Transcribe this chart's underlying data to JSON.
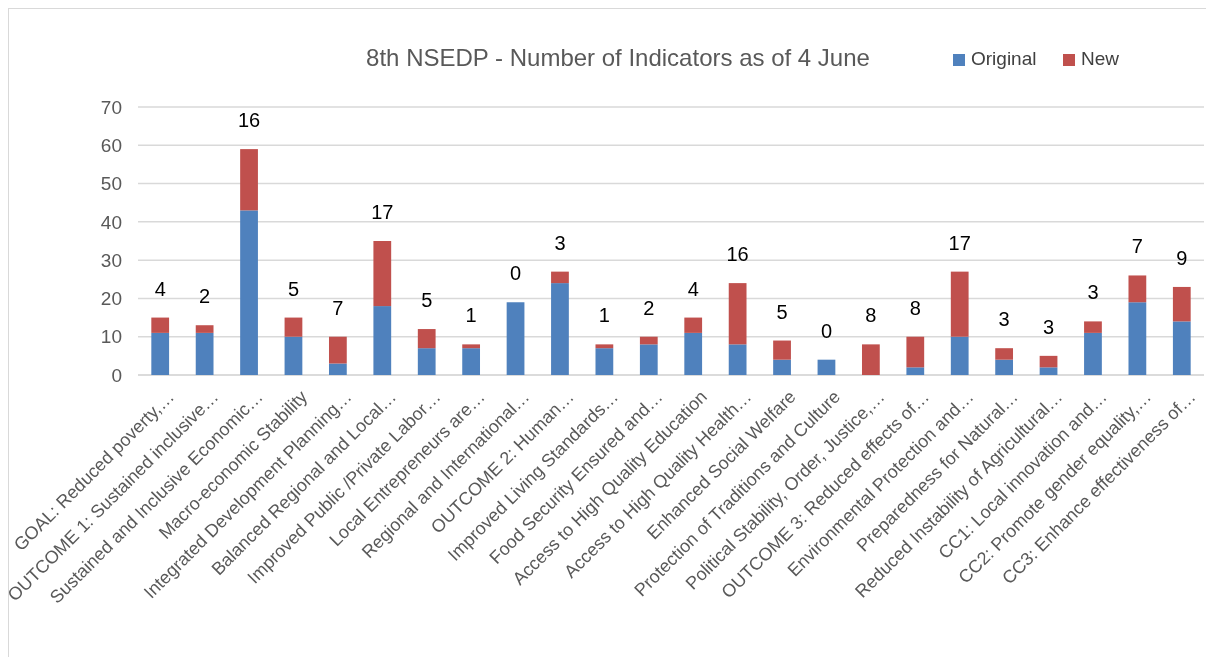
{
  "chart_data": {
    "type": "bar",
    "title": "8th NSEDP - Number of Indicators as of 4 June",
    "stacked": true,
    "categories": [
      "GOAL: Reduced poverty,…",
      "OUTCOME 1: Sustained inclusive…",
      "Sustained and Inclusive Economic…",
      "Macro-economic Stability",
      "Integrated Development Planning…",
      "Balanced Regional and Local…",
      "Improved Public /Private Labor…",
      "Local Entrepreneurs are…",
      "Regional and International…",
      "OUTCOME 2: Human…",
      "Improved Living Standards…",
      "Food Security Ensured and…",
      "Access to High Quality Education",
      "Access to High Quality Health…",
      "Enhanced Social Welfare",
      "Protection of Traditions and Culture",
      "Political Stability, Order, Justice,…",
      "OUTCOME 3: Reduced effects of…",
      "Environmental Protection and…",
      "Preparedness for Natural…",
      "Reduced Instability of Agricultural…",
      "CC1: Local innovation and…",
      "CC2: Promote gender equality,…",
      "CC3: Enhance effectiveness of…"
    ],
    "series": [
      {
        "name": "Original",
        "color": "#4f81bd",
        "values": [
          11,
          11,
          43,
          10,
          3,
          18,
          7,
          7,
          19,
          24,
          7,
          8,
          11,
          8,
          4,
          4,
          0,
          2,
          10,
          4,
          2,
          11,
          19,
          14
        ]
      },
      {
        "name": "New",
        "color": "#c0504d",
        "values": [
          4,
          2,
          16,
          5,
          7,
          17,
          5,
          1,
          0,
          3,
          1,
          2,
          4,
          16,
          5,
          0,
          8,
          8,
          17,
          3,
          3,
          3,
          7,
          9
        ],
        "value_labels": [
          "4",
          "2",
          "16",
          "5",
          "7",
          "17",
          "5",
          "1",
          "0",
          "3",
          "1",
          "2",
          "4",
          "16",
          "5",
          "0",
          "8",
          "8",
          "17",
          "3",
          "3",
          "3",
          "7",
          "9"
        ]
      }
    ],
    "ylim": [
      0,
      70
    ],
    "yticks": [
      0,
      10,
      20,
      30,
      40,
      50,
      60,
      70
    ],
    "grid": "y",
    "legend": "top right"
  }
}
